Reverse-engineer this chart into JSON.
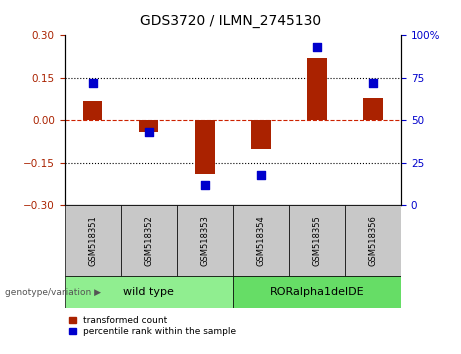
{
  "title": "GDS3720 / ILMN_2745130",
  "samples": [
    "GSM518351",
    "GSM518352",
    "GSM518353",
    "GSM518354",
    "GSM518355",
    "GSM518356"
  ],
  "transformed_count": [
    0.07,
    -0.04,
    -0.19,
    -0.1,
    0.22,
    0.08
  ],
  "percentile_rank": [
    72,
    43,
    12,
    18,
    93,
    72
  ],
  "groups": [
    {
      "label": "wild type",
      "indices": [
        0,
        1,
        2
      ],
      "color": "#90EE90"
    },
    {
      "label": "RORalpha1delDE",
      "indices": [
        3,
        4,
        5
      ],
      "color": "#66DD66"
    }
  ],
  "ylim_left": [
    -0.3,
    0.3
  ],
  "ylim_right": [
    0,
    100
  ],
  "yticks_left": [
    -0.3,
    -0.15,
    0,
    0.15,
    0.3
  ],
  "yticks_right": [
    0,
    25,
    50,
    75,
    100
  ],
  "bar_color": "#AA2200",
  "dot_color": "#0000CC",
  "hline_color": "#CC2200",
  "bg_color": "#ffffff",
  "plot_bg": "#ffffff",
  "label_transformed": "transformed count",
  "label_percentile": "percentile rank within the sample",
  "genotype_label": "genotype/variation",
  "header_bg": "#C8C8C8",
  "bar_width": 0.35,
  "dot_size": 30,
  "title_fontsize": 10,
  "tick_fontsize": 7.5,
  "sample_fontsize": 6,
  "group_fontsize": 8,
  "legend_fontsize": 6.5
}
